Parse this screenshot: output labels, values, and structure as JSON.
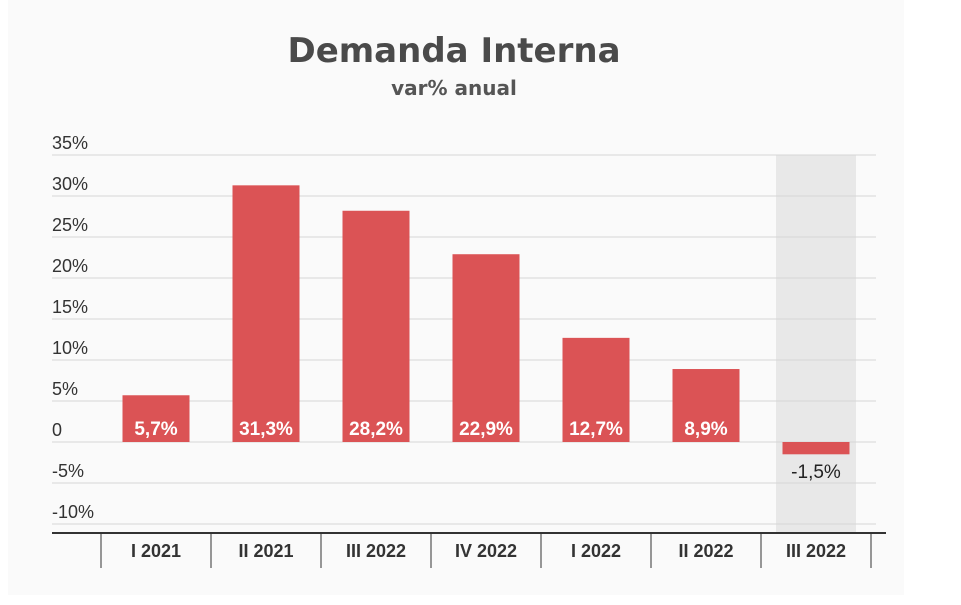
{
  "chart_data": {
    "type": "bar",
    "title": "Demanda Interna",
    "subtitle": "var% anual",
    "xlabel": "",
    "ylabel": "",
    "categories": [
      "I 2021",
      "II 2021",
      "III 2022",
      "IV 2022",
      "I 2022",
      "II 2022",
      "III 2022"
    ],
    "values": [
      5.7,
      31.3,
      28.2,
      22.9,
      12.7,
      8.9,
      -1.5
    ],
    "value_labels": [
      "5,7%",
      "31,3%",
      "28,2%",
      "22,9%",
      "12,7%",
      "8,9%",
      "-1,5%"
    ],
    "yticks": [
      35,
      30,
      25,
      20,
      15,
      10,
      5,
      0,
      -5,
      -10
    ],
    "ytick_labels": [
      "35%",
      "30%",
      "25%",
      "20%",
      "15%",
      "10%",
      "5%",
      "0",
      "-5%",
      "-10%"
    ],
    "ylim": [
      -10,
      35
    ],
    "grid": true,
    "highlighted_category_index": 6,
    "colors": {
      "bar": "#db5355",
      "highlight_band": "#e8e8e8",
      "grid": "#d6d6d6",
      "axis": "#333333",
      "title": "#4a4a4a"
    }
  }
}
